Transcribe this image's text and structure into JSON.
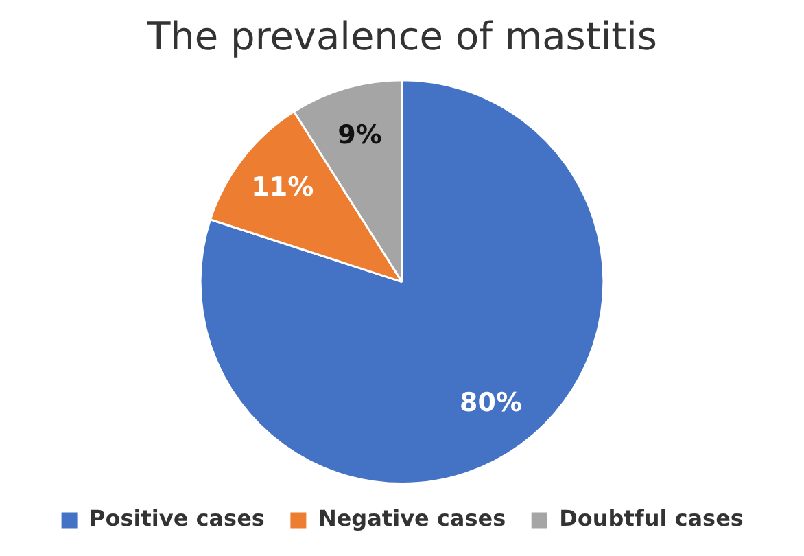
{
  "chart_data": {
    "type": "pie",
    "title": "The prevalence of mastitis",
    "categories": [
      "Positive cases",
      "Negative cases",
      "Doubtful cases"
    ],
    "values": [
      80,
      11,
      9
    ],
    "colors": [
      "#4472c4",
      "#ed7d31",
      "#a5a5a5"
    ],
    "value_labels": [
      "80%",
      "11%",
      "9%"
    ],
    "legend": "bottom"
  }
}
